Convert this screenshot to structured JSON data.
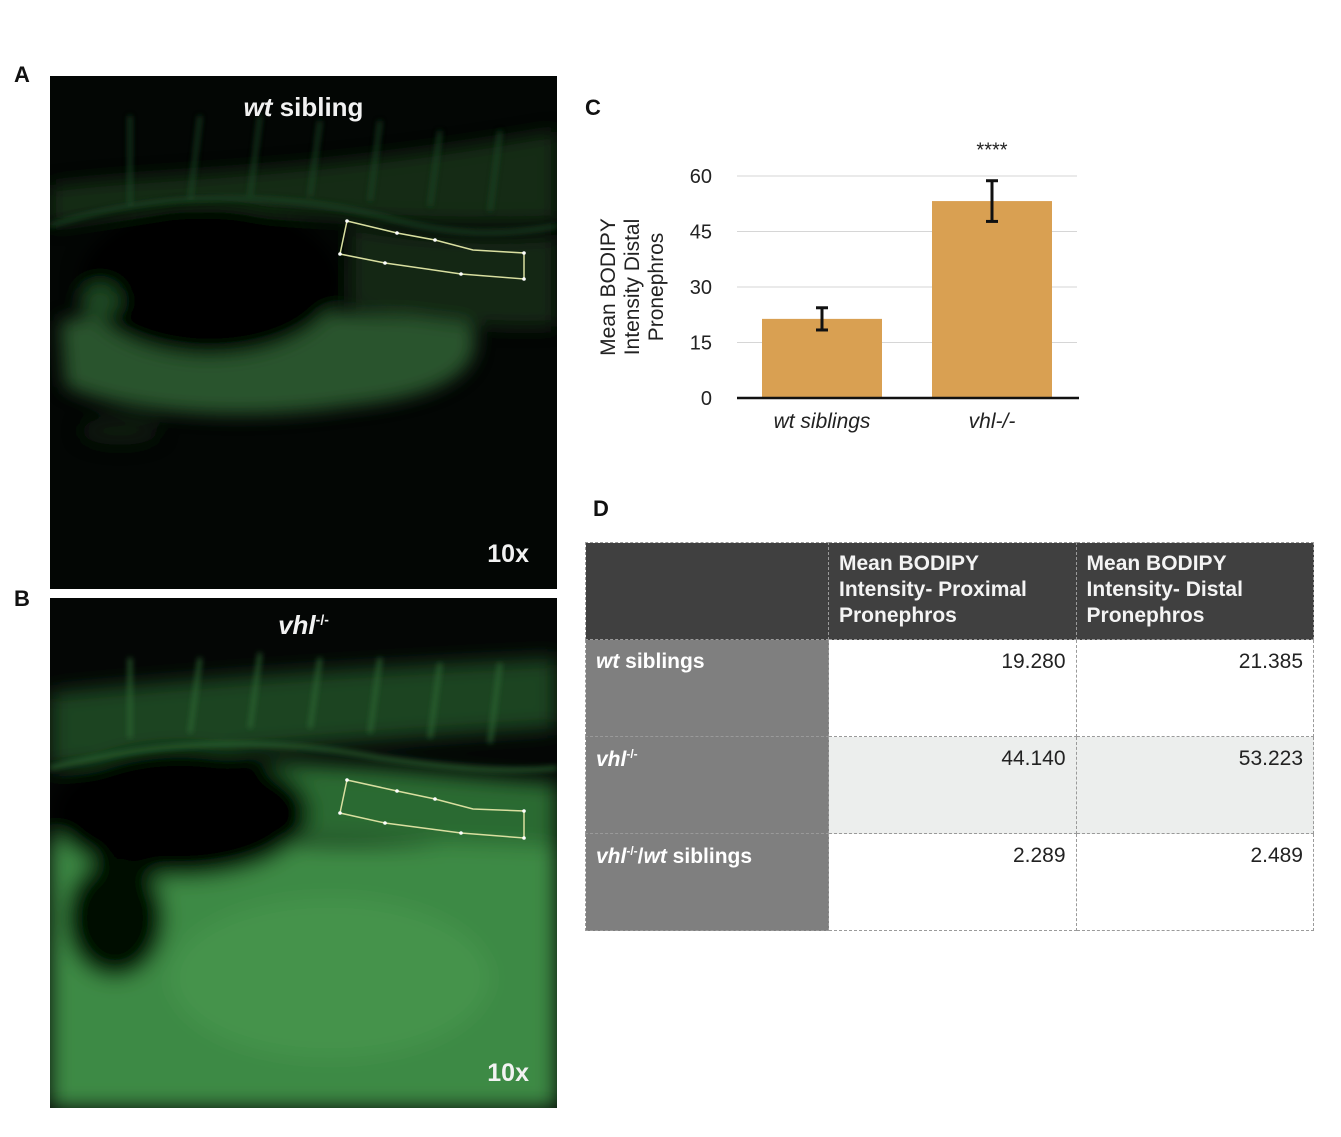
{
  "panels": {
    "a": {
      "letter": "A",
      "title_italic": "wt",
      "title_rest": " sibling",
      "magnification": "10x"
    },
    "b": {
      "letter": "B",
      "title_italic": "vhl",
      "title_sup": "-/-",
      "magnification": "10x"
    },
    "c": {
      "letter": "C"
    },
    "d": {
      "letter": "D"
    }
  },
  "chart_data": {
    "type": "bar",
    "title": "",
    "ylabel": "Mean BODIPY Intensity Distal Pronephros",
    "ylabel_lines": [
      "Mean BODIPY",
      "Intensity Distal",
      "Pronephros"
    ],
    "categories": [
      "wt siblings",
      "vhl-/-"
    ],
    "values": [
      21.385,
      53.223
    ],
    "error": [
      3,
      5.5
    ],
    "ylim": [
      0,
      60
    ],
    "yticks": [
      0,
      15,
      30,
      45,
      60
    ],
    "annotations": [
      {
        "category": "vhl-/-",
        "text": "****"
      }
    ],
    "bar_color": "#d9a052",
    "grid": true
  },
  "table": {
    "columns": [
      "",
      "Mean BODIPY Intensity- Proximal Pronephros",
      "Mean BODIPY Intensity- Distal Pronephros"
    ],
    "rows": [
      {
        "label_italic": "wt",
        "label_sup": "",
        "label_rest": " siblings",
        "proximal": "19.280",
        "distal": "21.385"
      },
      {
        "label_italic": "vhl",
        "label_sup": "-/-",
        "label_rest": "",
        "proximal": "44.140",
        "distal": "53.223"
      },
      {
        "label_italic": "vhl",
        "label_sup": "-/-",
        "label_rest": "/",
        "label_italic2": "wt",
        "label_rest2": " siblings",
        "proximal": "2.289",
        "distal": "2.489"
      }
    ]
  }
}
